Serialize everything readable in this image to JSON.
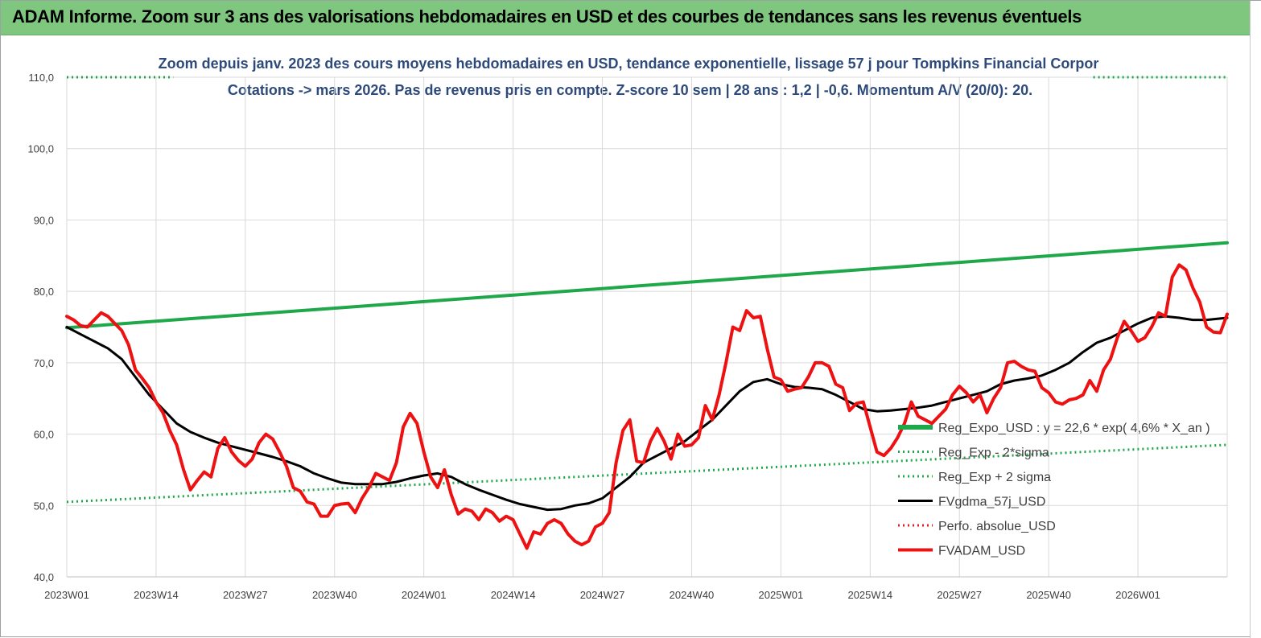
{
  "banner": {
    "title": "ADAM Informe. Zoom sur 3 ans des valorisations hebdomadaires en USD et des courbes de tendances sans les revenus éventuels"
  },
  "chart_data": {
    "type": "line",
    "title_line1": "Zoom depuis janv. 2023 des cours moyens hebdomadaires en USD, tendance exponentielle, lissage 57 j pour Tompkins Financial Corpor",
    "title_line2": "Cotations -> mars 2026. Pas de revenus pris en compte. Z-score 10 sem | 28 ans : 1,2 | -0,6. Momentum A/V (20/0): 20.",
    "ylim": [
      40,
      110
    ],
    "yticks": [
      40,
      50,
      60,
      70,
      80,
      90,
      100,
      110
    ],
    "ytick_labels": [
      "40,0",
      "50,0",
      "60,0",
      "70,0",
      "80,0",
      "90,0",
      "100,0",
      "110,0"
    ],
    "x_categories": [
      "2023W01",
      "2023W14",
      "2023W27",
      "2023W40",
      "2024W01",
      "2024W14",
      "2024W27",
      "2024W40",
      "2025W01",
      "2025W14",
      "2025W27",
      "2025W40",
      "2026W01"
    ],
    "x_domain": [
      0,
      169
    ],
    "grid": true,
    "legend_position": "right",
    "series": [
      {
        "name": "Reg_Expo_USD : y = 22,6 * exp( 4,6% *  X_an )",
        "color": "#1fa84a",
        "style": "solid-thick",
        "x": [
          0,
          169
        ],
        "y": [
          74.9,
          86.8
        ]
      },
      {
        "name": "Reg_Exp - 2*sigma",
        "color": "#1fa84a",
        "style": "dotted",
        "x": [
          0,
          169
        ],
        "y": [
          50.5,
          58.5
        ]
      },
      {
        "name": "Reg_Exp + 2 sigma",
        "color": "#1fa84a",
        "style": "dotted",
        "x": [
          0,
          15.5,
          149.5,
          169
        ],
        "y": [
          110,
          110,
          110,
          110
        ]
      },
      {
        "name": "FVgdma_57j_USD",
        "color": "#000000",
        "style": "solid",
        "x": [
          0,
          2,
          4,
          6,
          8,
          10,
          12,
          14,
          16,
          18,
          20,
          22,
          24,
          26,
          28,
          30,
          32,
          34,
          36,
          38,
          40,
          42,
          44,
          46,
          48,
          50,
          52,
          54,
          56,
          58,
          60,
          62,
          64,
          66,
          68,
          70,
          72,
          74,
          76,
          78,
          80,
          82,
          84,
          86,
          88,
          90,
          92,
          94,
          96,
          98,
          100,
          102,
          104,
          106,
          108,
          110,
          112,
          114,
          116,
          118,
          120,
          122,
          124,
          126,
          128,
          130,
          132,
          134,
          136,
          138,
          140,
          142,
          144,
          146,
          148,
          150,
          152,
          154,
          156,
          158,
          160,
          162,
          164,
          166,
          168,
          169
        ],
        "y": [
          75.0,
          74.0,
          73.0,
          72.0,
          70.5,
          68.0,
          65.5,
          63.5,
          61.5,
          60.3,
          59.5,
          58.8,
          58.3,
          57.8,
          57.3,
          56.8,
          56.2,
          55.5,
          54.5,
          53.8,
          53.2,
          53.0,
          53.0,
          53.0,
          53.3,
          53.8,
          54.2,
          54.5,
          54.0,
          53.0,
          52.2,
          51.5,
          50.8,
          50.2,
          49.8,
          49.4,
          49.5,
          50.0,
          50.3,
          51.0,
          52.5,
          54.0,
          56.0,
          57.0,
          58.0,
          59.0,
          60.5,
          62.0,
          64.0,
          66.0,
          67.3,
          67.7,
          67.0,
          66.6,
          66.5,
          66.3,
          65.5,
          64.5,
          63.5,
          63.2,
          63.3,
          63.5,
          63.7,
          64.0,
          64.5,
          65.0,
          65.5,
          66.0,
          67.0,
          67.5,
          67.8,
          68.2,
          69.0,
          70.0,
          71.5,
          72.8,
          73.5,
          74.5,
          75.5,
          76.3,
          76.5,
          76.3,
          76.0,
          76.0,
          76.2,
          76.3
        ]
      },
      {
        "name": "Perfo. absolue_USD",
        "color": "#e02020",
        "style": "dotted",
        "x": [],
        "y": []
      },
      {
        "name": "FVADAM_USD",
        "color": "#ee1111",
        "style": "solid-thick",
        "x": [
          0,
          1,
          2,
          3,
          4,
          5,
          6,
          7,
          8,
          9,
          10,
          11,
          12,
          13,
          14,
          15,
          16,
          17,
          18,
          19,
          20,
          21,
          22,
          23,
          24,
          25,
          26,
          27,
          28,
          29,
          30,
          31,
          32,
          33,
          34,
          35,
          36,
          37,
          38,
          39,
          40,
          41,
          42,
          43,
          44,
          45,
          46,
          47,
          48,
          49,
          50,
          51,
          52,
          53,
          54,
          55,
          56,
          57,
          58,
          59,
          60,
          61,
          62,
          63,
          64,
          65,
          66,
          67,
          68,
          69,
          70,
          71,
          72,
          73,
          74,
          75,
          76,
          77,
          78,
          79,
          80,
          81,
          82,
          83,
          84,
          85,
          86,
          87,
          88,
          89,
          90,
          91,
          92,
          93,
          94,
          95,
          96,
          97,
          98,
          99,
          100,
          101,
          102,
          103,
          104,
          105,
          106,
          107,
          108,
          109,
          110,
          111,
          112,
          113,
          114,
          115,
          116,
          117,
          118,
          119,
          120,
          121,
          122,
          123,
          124,
          125,
          126,
          127,
          128,
          129,
          130,
          131,
          132,
          133,
          134,
          135,
          136,
          137,
          138,
          139,
          140,
          141,
          142,
          143,
          144,
          145,
          146,
          147,
          148,
          149,
          150,
          151,
          152,
          153,
          154,
          155,
          156,
          157,
          158,
          159,
          160,
          161,
          162,
          163,
          164,
          165,
          166,
          167,
          168,
          169
        ],
        "y": [
          76.5,
          76.0,
          75.2,
          75.0,
          76.0,
          77.0,
          76.5,
          75.5,
          74.5,
          72.5,
          69.0,
          67.8,
          66.5,
          64.5,
          63.0,
          60.5,
          58.5,
          55.0,
          52.2,
          53.5,
          54.7,
          54.0,
          58.0,
          59.5,
          57.5,
          56.3,
          55.5,
          56.5,
          58.8,
          60.0,
          59.3,
          57.5,
          55.5,
          52.5,
          52.0,
          50.5,
          50.2,
          48.5,
          48.5,
          50.0,
          50.2,
          50.3,
          49.0,
          51.0,
          52.5,
          54.5,
          54.0,
          53.5,
          56.0,
          61.0,
          62.9,
          61.5,
          57.5,
          54.0,
          52.5,
          55.0,
          51.5,
          48.8,
          49.5,
          49.2,
          48.0,
          49.5,
          49.0,
          47.8,
          48.5,
          48.0,
          46.0,
          44.0,
          46.3,
          46.0,
          47.5,
          48.0,
          47.5,
          46.0,
          45.0,
          44.5,
          45.0,
          47.0,
          47.5,
          49.0,
          56.0,
          60.5,
          62.0,
          56.2,
          56.0,
          59.0,
          60.8,
          59.0,
          56.5,
          60.0,
          58.3,
          58.5,
          59.5,
          64.0,
          62.0,
          65.5,
          70.0,
          75.0,
          74.5,
          77.3,
          76.3,
          76.5,
          72.0,
          68.0,
          67.6,
          66.0,
          66.3,
          66.5,
          68.0,
          70.0,
          70.0,
          69.5,
          67.0,
          66.5,
          63.3,
          64.3,
          64.5,
          61.0,
          57.5,
          57.0,
          58.0,
          59.5,
          61.5,
          64.5,
          62.5,
          62.0,
          61.5,
          62.5,
          63.5,
          65.5,
          66.7,
          65.8,
          64.5,
          65.5,
          63.0,
          65.0,
          66.5,
          70.0,
          70.2,
          69.5,
          69.0,
          68.8,
          66.5,
          65.8,
          64.5,
          64.2,
          64.8,
          65.0,
          65.5,
          67.5,
          66.0,
          69.0,
          70.5,
          73.5,
          75.8,
          74.5,
          73.0,
          73.5,
          75.0,
          77.0,
          76.5,
          82.0,
          83.7,
          83.0,
          80.5,
          78.5,
          75.0,
          74.3,
          74.2,
          76.8
        ]
      }
    ]
  }
}
